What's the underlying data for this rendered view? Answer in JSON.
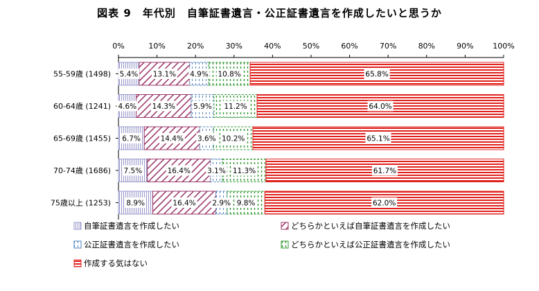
{
  "chart_data": {
    "type": "bar",
    "orientation": "horizontal",
    "stacked": true,
    "title": "図表 9　年代別　自筆証書遺言・公正証書遺言を作成したいと思うか",
    "x_ticks": [
      "0%",
      "10%",
      "20%",
      "30%",
      "40%",
      "50%",
      "60%",
      "70%",
      "80%",
      "90%",
      "100%"
    ],
    "xlim": [
      0,
      100
    ],
    "categories": [
      "55-59歳 (1498)",
      "60-64歳 (1241)",
      "65-69歳 (1455)",
      "70-74歳 (1686)",
      "75歳以上 (1253)"
    ],
    "series": [
      {
        "name": "自筆証書遺言を作成したい",
        "values": [
          5.4,
          4.6,
          6.7,
          7.5,
          8.9
        ],
        "labels": [
          "5.4%",
          "4.6%",
          "6.7%",
          "7.5%",
          "8.9%"
        ],
        "pattern": "vertical-lines",
        "color": "#9999cc"
      },
      {
        "name": "どちらかといえば自筆証書遺言を作成したい",
        "values": [
          13.1,
          14.3,
          14.4,
          16.4,
          16.4
        ],
        "labels": [
          "13.1%",
          "14.3%",
          "14.4%",
          "16.4%",
          "16.4%"
        ],
        "pattern": "diagonal-stripes",
        "color": "#993366"
      },
      {
        "name": "公正証書遺言を作成したい",
        "values": [
          4.9,
          5.9,
          3.6,
          3.1,
          2.9
        ],
        "labels": [
          "4.9%",
          "5.9%",
          "3.6%",
          "3.1%",
          "2.9%"
        ],
        "pattern": "dashed-vertical",
        "color": "#4f81bd"
      },
      {
        "name": "どちらかといえば公正証書遺言を作成したい",
        "values": [
          10.8,
          11.2,
          10.2,
          11.3,
          9.8
        ],
        "labels": [
          "10.8%",
          "11.2%",
          "10.2%",
          "11.3%",
          "9.8%"
        ],
        "pattern": "dashed-vertical",
        "color": "#339933"
      },
      {
        "name": "作成する気はない",
        "values": [
          65.8,
          64.0,
          65.1,
          61.7,
          62.0
        ],
        "labels": [
          "65.8%",
          "64.0%",
          "65.1%",
          "61.7%",
          "62.0%"
        ],
        "pattern": "horizontal-stripes",
        "color": "#e0201c"
      }
    ],
    "legend_position": "bottom",
    "grid": false
  }
}
